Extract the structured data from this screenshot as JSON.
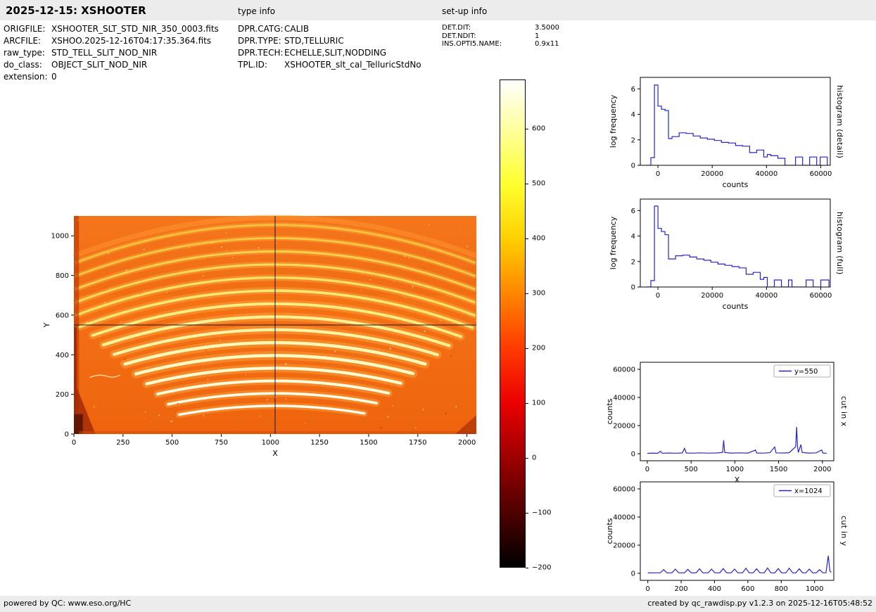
{
  "header": {
    "title": "2025-12-15: XSHOOTER",
    "type_info_label": "type info",
    "setup_info_label": "set-up info"
  },
  "file_info": {
    "rows": [
      {
        "label": "ORIGFILE:",
        "value": "XSHOOTER_SLT_STD_NIR_350_0003.fits"
      },
      {
        "label": "ARCFILE:",
        "value": "XSHOO.2025-12-16T04:17:35.364.fits"
      },
      {
        "label": "raw_type:",
        "value": "STD_TELL_SLIT_NOD_NIR"
      },
      {
        "label": "do_class:",
        "value": "OBJECT_SLIT_NOD_NIR"
      },
      {
        "label": "extension:",
        "value": "0"
      }
    ]
  },
  "type_info": {
    "rows": [
      {
        "label": "DPR.CATG:",
        "value": "CALIB"
      },
      {
        "label": "DPR.TYPE:",
        "value": "STD,TELLURIC"
      },
      {
        "label": "DPR.TECH:",
        "value": "ECHELLE,SLIT,NODDING"
      },
      {
        "label": "TPL.ID:",
        "value": "XSHOOTER_slt_cal_TelluricStdNo"
      }
    ]
  },
  "setup_info": {
    "rows": [
      {
        "label": "DET.DIT:",
        "value": "3.5000"
      },
      {
        "label": "DET.NDIT:",
        "value": "1"
      },
      {
        "label": "INS.OPTI5.NAME:",
        "value": "0.9x11"
      }
    ]
  },
  "footer": {
    "left": "powered by QC: www.eso.org/HC",
    "right": "created by qc_rawdisp.py v1.2.3 on 2025-12-16T05:48:52"
  },
  "colorbar": {
    "domain": [
      690,
      -200
    ],
    "ticks": [
      600,
      500,
      400,
      300,
      200,
      100,
      0,
      -100,
      -200
    ],
    "stops": [
      {
        "value": 690,
        "color": "#ffffff"
      },
      {
        "value": 600,
        "color": "#ffff9e"
      },
      {
        "value": 500,
        "color": "#ffff30"
      },
      {
        "value": 400,
        "color": "#ffd000"
      },
      {
        "value": 300,
        "color": "#ff8600"
      },
      {
        "value": 200,
        "color": "#ff3a00"
      },
      {
        "value": 100,
        "color": "#ec0000"
      },
      {
        "value": 0,
        "color": "#9e0000"
      },
      {
        "value": -100,
        "color": "#4f0000"
      },
      {
        "value": -200,
        "color": "#000000"
      }
    ]
  },
  "chart_data": [
    {
      "name": "raw_nir_frame",
      "type": "heatmap",
      "x_label": "X",
      "y_label": "Y",
      "x_domain": [
        0,
        2048
      ],
      "y_domain": [
        0,
        1100
      ],
      "x_ticks": [
        0,
        250,
        500,
        750,
        1000,
        1250,
        1500,
        1750,
        2000
      ],
      "y_ticks": [
        0,
        200,
        400,
        600,
        800,
        1000
      ],
      "frame": false,
      "colormap": "hot",
      "crosshair": {
        "x": 1024,
        "y": 550
      },
      "arc_curvature": 0.000185,
      "arcs": [
        [
          1055,
          10,
          2038,
          9,
          "#ffc63a"
        ],
        [
          988,
          10,
          2038,
          9,
          "#ffcc42"
        ],
        [
          921,
          10,
          2038,
          10,
          "#ffd34c"
        ],
        [
          855,
          10,
          2038,
          11,
          "#ffda57"
        ],
        [
          789,
          10,
          2038,
          12,
          "#ffe163"
        ],
        [
          723,
          25,
          2028,
          13,
          "#ffe771"
        ],
        [
          657,
          95,
          1970,
          14,
          "#ffec82"
        ],
        [
          591,
          150,
          1910,
          15,
          "#fff094"
        ],
        [
          526,
          205,
          1850,
          15,
          "#fff4a6"
        ],
        [
          461,
          260,
          1788,
          16,
          "#fff7b6"
        ],
        [
          396,
          315,
          1726,
          16,
          "#fff9c4"
        ],
        [
          332,
          370,
          1664,
          15,
          "#fffbd2"
        ],
        [
          268,
          425,
          1602,
          14,
          "#fffcde"
        ],
        [
          205,
          480,
          1540,
          13,
          "#fffde8"
        ],
        [
          142,
          535,
          1478,
          12,
          "#fffef2"
        ]
      ]
    },
    {
      "name": "histogram_detail",
      "type": "line",
      "side_label": "histogram (detail)",
      "x_label": "counts",
      "y_label": "log frequency",
      "x_domain": [
        -6500,
        63500
      ],
      "y_domain": [
        0,
        6.9
      ],
      "x_ticks": [
        0,
        20000,
        40000,
        60000
      ],
      "y_ticks": [
        0,
        2,
        4,
        6
      ],
      "line_color": "#2424cf",
      "points": [
        [
          -4500,
          0
        ],
        [
          -2600,
          0
        ],
        [
          -2600,
          0.6
        ],
        [
          -1300,
          0.6
        ],
        [
          -1300,
          6.3
        ],
        [
          0,
          6.3
        ],
        [
          0,
          4.65
        ],
        [
          1300,
          4.65
        ],
        [
          1300,
          4.4
        ],
        [
          2600,
          4.4
        ],
        [
          2600,
          4.3
        ],
        [
          3900,
          4.3
        ],
        [
          3900,
          2.1
        ],
        [
          5200,
          2.1
        ],
        [
          5200,
          2.25
        ],
        [
          7800,
          2.25
        ],
        [
          7800,
          2.55
        ],
        [
          10400,
          2.55
        ],
        [
          10400,
          2.5
        ],
        [
          13000,
          2.5
        ],
        [
          13000,
          2.3
        ],
        [
          15600,
          2.3
        ],
        [
          15600,
          2.15
        ],
        [
          18200,
          2.15
        ],
        [
          18200,
          2.05
        ],
        [
          20800,
          2.05
        ],
        [
          20800,
          1.95
        ],
        [
          23400,
          1.95
        ],
        [
          23400,
          1.8
        ],
        [
          26000,
          1.8
        ],
        [
          26000,
          1.75
        ],
        [
          28600,
          1.75
        ],
        [
          28600,
          1.55
        ],
        [
          31200,
          1.55
        ],
        [
          31200,
          1.5
        ],
        [
          33800,
          1.5
        ],
        [
          33800,
          1.0
        ],
        [
          36400,
          1.0
        ],
        [
          36400,
          1.2
        ],
        [
          39000,
          1.2
        ],
        [
          39000,
          0.65
        ],
        [
          40300,
          0.65
        ],
        [
          40300,
          0.85
        ],
        [
          41600,
          0.85
        ],
        [
          41600,
          0.75
        ],
        [
          44200,
          0.75
        ],
        [
          44200,
          0.55
        ],
        [
          46800,
          0.55
        ],
        [
          46800,
          0
        ],
        [
          50700,
          0
        ],
        [
          50700,
          0.65
        ],
        [
          53300,
          0.65
        ],
        [
          53300,
          0
        ],
        [
          55900,
          0
        ],
        [
          55900,
          0.65
        ],
        [
          58500,
          0.65
        ],
        [
          58500,
          0
        ],
        [
          59800,
          0
        ],
        [
          59800,
          0.65
        ],
        [
          62400,
          0.65
        ],
        [
          62400,
          0
        ]
      ]
    },
    {
      "name": "histogram_full",
      "type": "line",
      "side_label": "histogram (full)",
      "x_label": "counts",
      "y_label": "log frequency",
      "x_domain": [
        -6500,
        63500
      ],
      "y_domain": [
        0,
        6.9
      ],
      "x_ticks": [
        0,
        20000,
        40000,
        60000
      ],
      "y_ticks": [
        0,
        2,
        4,
        6
      ],
      "line_color": "#2424cf",
      "points": [
        [
          -4500,
          0
        ],
        [
          -2600,
          0
        ],
        [
          -2600,
          0.5
        ],
        [
          -1300,
          0.5
        ],
        [
          -1300,
          6.35
        ],
        [
          0,
          6.35
        ],
        [
          0,
          4.6
        ],
        [
          1300,
          4.6
        ],
        [
          1300,
          4.35
        ],
        [
          2600,
          4.35
        ],
        [
          2600,
          4.1
        ],
        [
          3900,
          4.1
        ],
        [
          3900,
          2.2
        ],
        [
          6500,
          2.2
        ],
        [
          6500,
          2.45
        ],
        [
          9100,
          2.45
        ],
        [
          9100,
          2.5
        ],
        [
          11700,
          2.5
        ],
        [
          11700,
          2.35
        ],
        [
          14300,
          2.35
        ],
        [
          14300,
          2.2
        ],
        [
          16900,
          2.2
        ],
        [
          16900,
          2.1
        ],
        [
          19500,
          2.1
        ],
        [
          19500,
          1.95
        ],
        [
          22100,
          1.95
        ],
        [
          22100,
          1.8
        ],
        [
          24700,
          1.8
        ],
        [
          24700,
          1.7
        ],
        [
          27300,
          1.7
        ],
        [
          27300,
          1.6
        ],
        [
          29900,
          1.6
        ],
        [
          29900,
          1.5
        ],
        [
          32500,
          1.5
        ],
        [
          32500,
          1.0
        ],
        [
          35100,
          1.0
        ],
        [
          35100,
          1.15
        ],
        [
          37700,
          1.15
        ],
        [
          37700,
          0.6
        ],
        [
          39000,
          0.6
        ],
        [
          39000,
          0.75
        ],
        [
          40300,
          0.75
        ],
        [
          40300,
          0
        ],
        [
          42900,
          0
        ],
        [
          42900,
          0.55
        ],
        [
          45500,
          0.55
        ],
        [
          45500,
          0
        ],
        [
          48100,
          0
        ],
        [
          48100,
          0.55
        ],
        [
          49400,
          0.55
        ],
        [
          49400,
          0
        ],
        [
          54600,
          0
        ],
        [
          54600,
          0.55
        ],
        [
          57200,
          0.55
        ],
        [
          57200,
          0
        ],
        [
          60000,
          0
        ],
        [
          60000,
          0.55
        ],
        [
          63000,
          0.55
        ],
        [
          63000,
          0
        ]
      ]
    },
    {
      "name": "cut_in_x",
      "type": "line",
      "side_label": "cut in x",
      "x_label": "X",
      "y_label": "counts",
      "x_domain": [
        -80,
        2130
      ],
      "y_domain": [
        -5000,
        65000
      ],
      "x_ticks": [
        0,
        500,
        1000,
        1500,
        2000
      ],
      "y_ticks": [
        0,
        20000,
        40000,
        60000
      ],
      "line_color": "#2424cf",
      "legend": {
        "label": "y=550"
      },
      "points": [
        [
          0,
          250
        ],
        [
          60,
          450
        ],
        [
          120,
          300
        ],
        [
          150,
          1800
        ],
        [
          170,
          350
        ],
        [
          250,
          500
        ],
        [
          330,
          350
        ],
        [
          400,
          550
        ],
        [
          425,
          3800
        ],
        [
          445,
          500
        ],
        [
          520,
          400
        ],
        [
          600,
          600
        ],
        [
          700,
          400
        ],
        [
          800,
          550
        ],
        [
          860,
          900
        ],
        [
          872,
          9500
        ],
        [
          884,
          900
        ],
        [
          950,
          450
        ],
        [
          1050,
          600
        ],
        [
          1150,
          450
        ],
        [
          1235,
          2600
        ],
        [
          1250,
          500
        ],
        [
          1320,
          400
        ],
        [
          1400,
          700
        ],
        [
          1455,
          4800
        ],
        [
          1470,
          600
        ],
        [
          1550,
          500
        ],
        [
          1620,
          700
        ],
        [
          1695,
          5000
        ],
        [
          1706,
          19000
        ],
        [
          1716,
          5000
        ],
        [
          1725,
          900
        ],
        [
          1755,
          6500
        ],
        [
          1768,
          900
        ],
        [
          1850,
          450
        ],
        [
          1930,
          600
        ],
        [
          1992,
          2700
        ],
        [
          2005,
          500
        ],
        [
          2048,
          350
        ]
      ]
    },
    {
      "name": "cut_in_y",
      "type": "line",
      "side_label": "cut in y",
      "x_label": "Y",
      "y_label": "counts",
      "x_domain": [
        -45,
        1115
      ],
      "y_domain": [
        -5000,
        65000
      ],
      "x_ticks": [
        0,
        200,
        400,
        600,
        800,
        1000
      ],
      "y_ticks": [
        0,
        20000,
        40000,
        60000
      ],
      "line_color": "#2424cf",
      "legend": {
        "label": "x=1024"
      },
      "points": [
        [
          0,
          300
        ],
        [
          40,
          350
        ],
        [
          75,
          350
        ],
        [
          95,
          2600
        ],
        [
          115,
          350
        ],
        [
          145,
          350
        ],
        [
          165,
          3000
        ],
        [
          185,
          350
        ],
        [
          220,
          350
        ],
        [
          240,
          2800
        ],
        [
          260,
          350
        ],
        [
          290,
          350
        ],
        [
          310,
          3200
        ],
        [
          330,
          350
        ],
        [
          362,
          350
        ],
        [
          382,
          3000
        ],
        [
          402,
          350
        ],
        [
          432,
          350
        ],
        [
          452,
          3400
        ],
        [
          472,
          350
        ],
        [
          500,
          350
        ],
        [
          520,
          3000
        ],
        [
          540,
          350
        ],
        [
          568,
          350
        ],
        [
          588,
          3600
        ],
        [
          608,
          350
        ],
        [
          632,
          350
        ],
        [
          652,
          3200
        ],
        [
          672,
          350
        ],
        [
          698,
          350
        ],
        [
          718,
          3800
        ],
        [
          738,
          350
        ],
        [
          762,
          350
        ],
        [
          782,
          3400
        ],
        [
          802,
          350
        ],
        [
          828,
          350
        ],
        [
          848,
          3600
        ],
        [
          868,
          350
        ],
        [
          888,
          350
        ],
        [
          908,
          3200
        ],
        [
          928,
          350
        ],
        [
          948,
          350
        ],
        [
          968,
          3000
        ],
        [
          988,
          350
        ],
        [
          1010,
          350
        ],
        [
          1030,
          2600
        ],
        [
          1050,
          350
        ],
        [
          1068,
          400
        ],
        [
          1082,
          12500
        ],
        [
          1092,
          1500
        ],
        [
          1100,
          600
        ]
      ]
    }
  ]
}
